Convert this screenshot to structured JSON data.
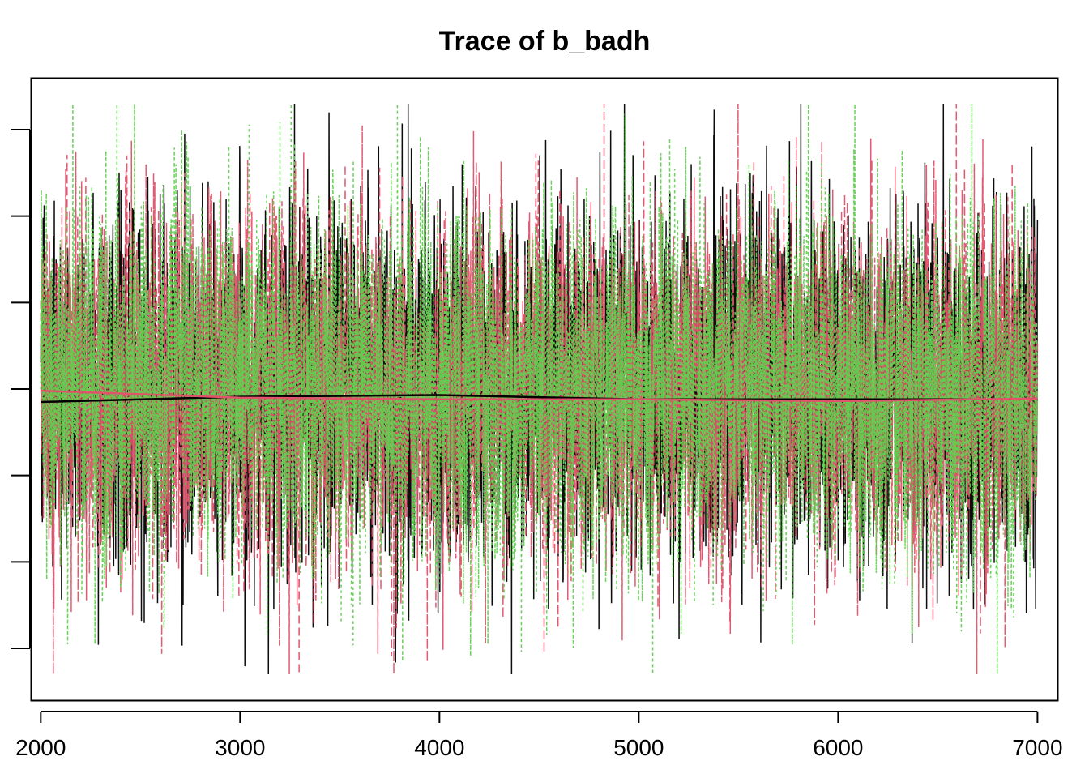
{
  "chart_data": {
    "type": "line",
    "title": "Trace of b_badh",
    "xlabel": "",
    "ylabel": "",
    "xlim": [
      1950,
      7100
    ],
    "ylim": [
      -3.6,
      3.6
    ],
    "x_ticks": [
      2000,
      3000,
      4000,
      5000,
      6000,
      7000
    ],
    "x_tick_labels": [
      "2000",
      "3000",
      "4000",
      "5000",
      "6000",
      "7000"
    ],
    "y_ticks": [
      -3,
      -2,
      -1,
      0,
      1,
      2,
      3
    ],
    "y_tick_labels_shown": false,
    "iterations": {
      "start": 2000,
      "end": 7000
    },
    "series": [
      {
        "color": "#000000",
        "dash": "solid",
        "seed": 17,
        "sd": 1.0,
        "lag_corr": 0.15
      },
      {
        "color": "#DF536B",
        "dash": "dashed",
        "seed": 29,
        "sd": 1.0,
        "lag_corr": 0.15
      },
      {
        "color": "#61D04F",
        "dash": "dotted",
        "seed": 43,
        "sd": 1.0,
        "lag_corr": 0.15
      }
    ],
    "smooth_lines": [
      {
        "color": "#000000",
        "x": [
          2000,
          3000,
          4000,
          5000,
          6000,
          7000
        ],
        "y": [
          -0.15,
          -0.09,
          -0.07,
          -0.12,
          -0.12,
          -0.12
        ]
      },
      {
        "color": "#DF536B",
        "x": [
          2000,
          3000,
          4000,
          5000,
          6000,
          7000
        ],
        "y": [
          -0.02,
          -0.1,
          -0.12,
          -0.12,
          -0.14,
          -0.11
        ]
      }
    ],
    "grid": false,
    "legend": "none"
  }
}
